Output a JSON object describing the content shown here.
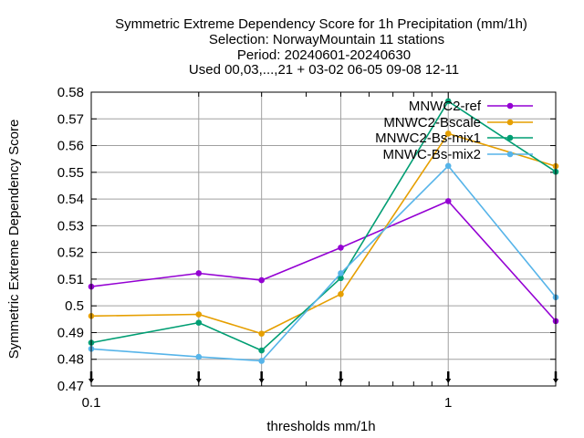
{
  "chart_data": {
    "type": "line",
    "title_lines": [
      "Symmetric Extreme Dependency Score  for 1h Precipitation (mm/1h)",
      "Selection: NorwayMountain     11 stations",
      "Period: 20240601-20240630",
      "Used 00,03,...,21 + 03-02 06-05 09-08 12-11"
    ],
    "xlabel": "thresholds mm/1h",
    "ylabel": "Symmetric Extreme Dependency Score",
    "x_scale": "log",
    "xlim": [
      0.1,
      2
    ],
    "ylim": [
      0.47,
      0.58
    ],
    "x_ticks": [
      0.1,
      1
    ],
    "x_tick_labels": [
      "0.1",
      "1"
    ],
    "y_ticks": [
      0.47,
      0.48,
      0.49,
      0.5,
      0.51,
      0.52,
      0.53,
      0.54,
      0.55,
      0.56,
      0.57,
      0.58
    ],
    "y_tick_labels": [
      "0.47",
      "0.48",
      "0.49",
      "0.5",
      "0.51",
      "0.52",
      "0.53",
      "0.54",
      "0.55",
      "0.56",
      "0.57",
      "0.58"
    ],
    "grid": true,
    "legend_position": "top-right",
    "x": [
      0.1,
      0.2,
      0.3,
      0.5,
      1,
      2
    ],
    "series": [
      {
        "name": "MNWC2-ref",
        "color": "#9400d3",
        "marker": "filled-circle",
        "values": [
          0.5072,
          0.5122,
          0.5096,
          0.5218,
          0.5392,
          0.4943
        ]
      },
      {
        "name": "MNWC2-Bscale",
        "color": "#e69f00",
        "marker": "filled-circle",
        "values": [
          0.4962,
          0.4968,
          0.4896,
          0.5044,
          0.5645,
          0.5523
        ]
      },
      {
        "name": "MNWC2-Bs-mix1",
        "color": "#009e73",
        "marker": "filled-circle",
        "values": [
          0.4862,
          0.4937,
          0.4833,
          0.5104,
          0.5766,
          0.5502
        ]
      },
      {
        "name": "MNWC-Bs-mix2",
        "color": "#56b4e9",
        "marker": "filled-circle",
        "values": [
          0.4839,
          0.4809,
          0.4794,
          0.5122,
          0.5524,
          0.5032
        ]
      }
    ]
  }
}
